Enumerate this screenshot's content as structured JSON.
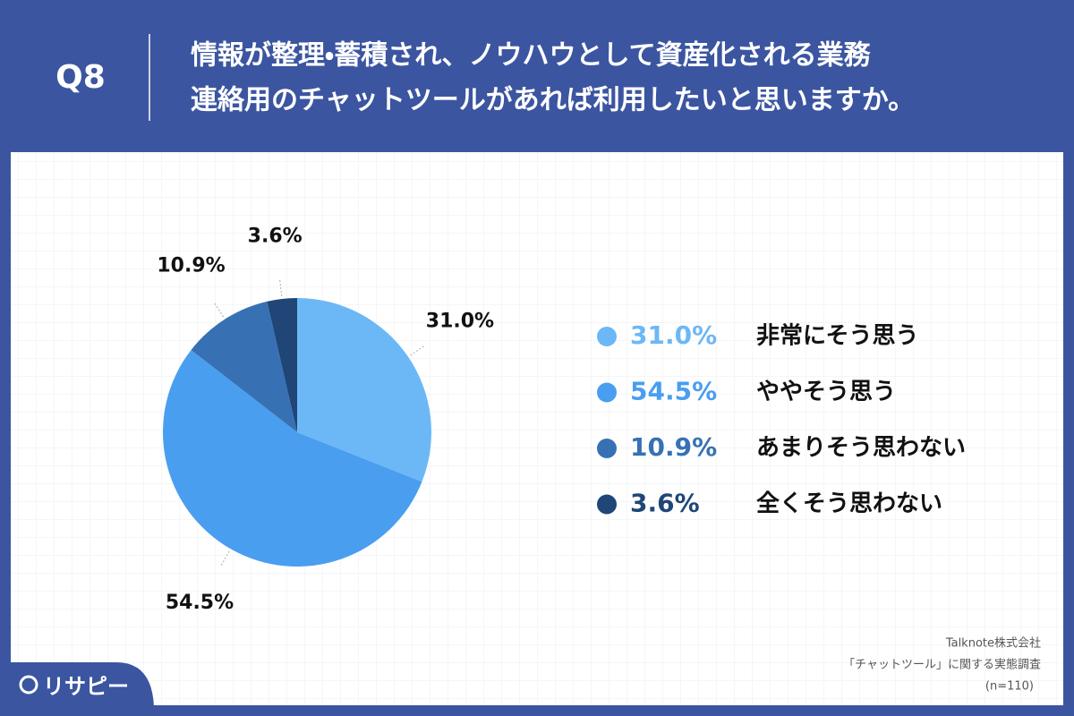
{
  "chart_data": {
    "type": "pie",
    "question": "Q8",
    "title": [
      "情報が整理・蓄積され、ノウハウとして資産化される業務",
      "連絡用のチャットツールがあれば利用したいと思いますか。"
    ],
    "categories": [
      "非常にそう思う",
      "ややそう思う",
      "あまりそう思わない",
      "全くそう思わない"
    ],
    "values": [
      31.0,
      54.5,
      10.9,
      3.6
    ],
    "value_labels": [
      "31.0%",
      "54.5%",
      "10.9%",
      "3.6%"
    ],
    "colors": [
      "#6cb8f6",
      "#4a9ef0",
      "#3771b4",
      "#1f4677"
    ],
    "source": [
      "Talknote株式会社",
      "「チャットツール」に関する実態調査",
      "(n=110)"
    ],
    "logo": "リサピー"
  }
}
